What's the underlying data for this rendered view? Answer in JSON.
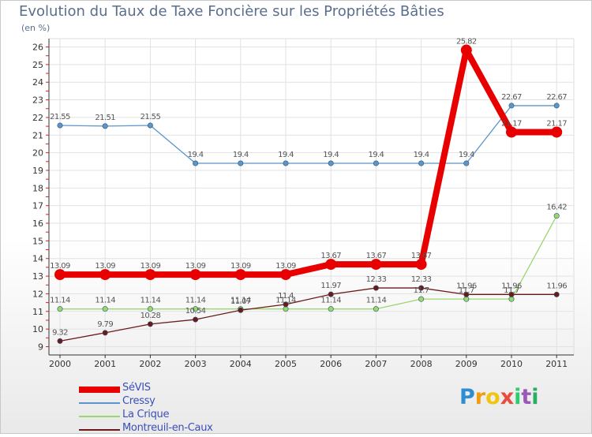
{
  "chart_data": {
    "type": "line",
    "title": "Evolution du Taux de Taxe Foncière sur les Propriétés Bâties",
    "ylabel": "(en %)",
    "xlabel": "",
    "ylim": [
      9,
      26
    ],
    "y_ticks": [
      "9",
      "10",
      "11",
      "12",
      "13",
      "14",
      "15",
      "16",
      "17",
      "18",
      "19",
      "20",
      "21",
      "22",
      "23",
      "24",
      "25",
      "26"
    ],
    "categories": [
      "2000",
      "2001",
      "2002",
      "2003",
      "2004",
      "2005",
      "2006",
      "2007",
      "2008",
      "2009",
      "2010",
      "2011"
    ],
    "series": [
      {
        "name": "SéVIS",
        "color": "#e80000",
        "width": 8,
        "marker": 7,
        "values": [
          13.09,
          13.09,
          13.09,
          13.09,
          13.09,
          13.09,
          13.67,
          13.67,
          13.67,
          25.82,
          21.17,
          21.17
        ],
        "labels": [
          "13.09",
          "13.09",
          "13.09",
          "13.09",
          "13.09",
          "13.09",
          "13.67",
          "13.67",
          "13.67",
          "25.82",
          "21.17",
          "21.17"
        ]
      },
      {
        "name": "Cressy",
        "color": "#5b95c9",
        "width": 1.3,
        "marker": 3.2,
        "values": [
          21.55,
          21.51,
          21.55,
          19.4,
          19.4,
          19.4,
          19.4,
          19.4,
          19.4,
          19.4,
          22.67,
          22.67
        ],
        "labels": [
          "21.55",
          "21.51",
          "21.55",
          "19.4",
          "19.4",
          "19.4",
          "19.4",
          "19.4",
          "19.4",
          "19.4",
          "22.67",
          "22.67"
        ]
      },
      {
        "name": "La Crique",
        "color": "#99d86e",
        "width": 1.3,
        "marker": 3.2,
        "values": [
          11.14,
          11.14,
          11.14,
          11.14,
          11.14,
          11.14,
          11.14,
          11.14,
          11.7,
          11.7,
          11.7,
          16.42
        ],
        "labels": [
          "11.14",
          "11.14",
          "11.14",
          "11.14",
          "11.14",
          "11.14",
          "11.14",
          "11.14",
          "11.7",
          "11.7",
          "11.7",
          "16.42"
        ]
      },
      {
        "name": "Montreuil-en-Caux",
        "color": "#6b1a1a",
        "width": 1.3,
        "marker": 3.2,
        "values": [
          9.32,
          9.79,
          10.28,
          10.54,
          11.07,
          11.4,
          11.97,
          12.33,
          12.33,
          11.96,
          11.96,
          11.96
        ],
        "labels": [
          "9.32",
          "9.79",
          "10.28",
          "10.54",
          "11.07",
          "11.4",
          "11.97",
          "12.33",
          "12.33",
          "11.96",
          "11.96",
          "11.96"
        ]
      }
    ]
  },
  "logo": {
    "letters": [
      "P",
      "r",
      "o",
      "x",
      "i",
      "t",
      "i"
    ],
    "colors": [
      "#2f8ed1",
      "#f39c12",
      "#f1c40f",
      "#e74c3c",
      "#2ecc71",
      "#9b59b6",
      "#27ae60"
    ]
  }
}
